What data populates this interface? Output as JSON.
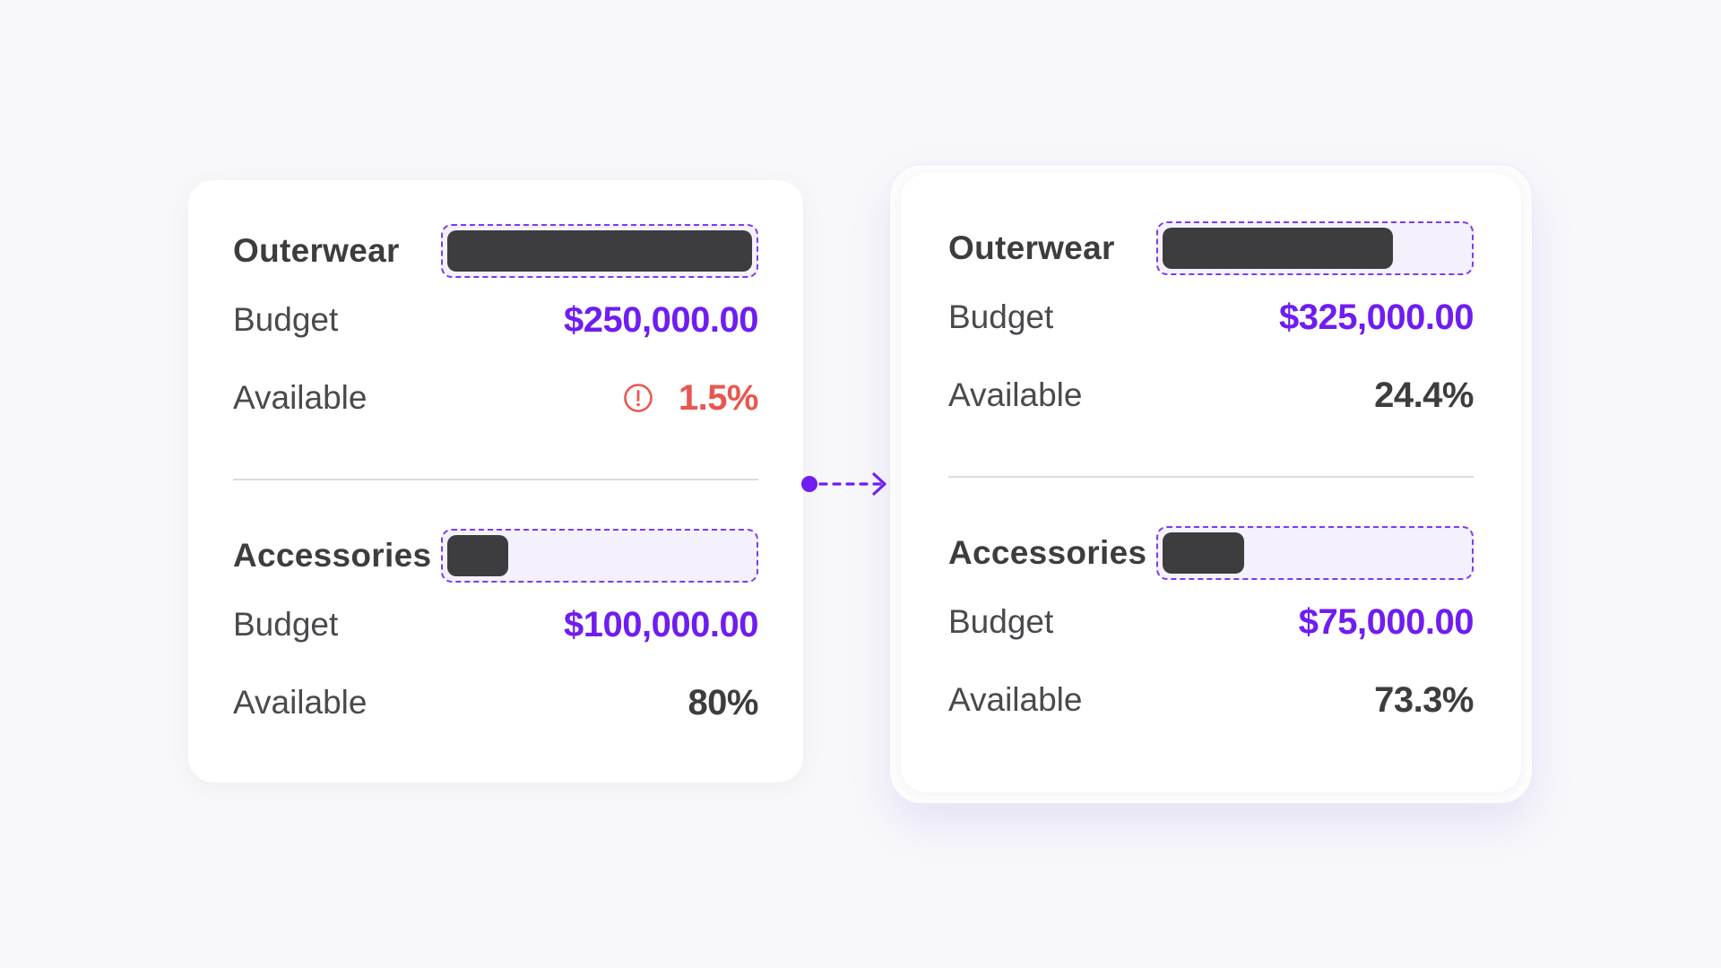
{
  "before": {
    "outerwear": {
      "name": "Outerwear",
      "bar_fill": 1.0,
      "budget_label": "Budget",
      "budget_value": "$250,000.00",
      "available_label": "Available",
      "available_value": "1.5%",
      "warning": true
    },
    "accessories": {
      "name": "Accessories",
      "bar_fill": 0.2,
      "budget_label": "Budget",
      "budget_value": "$100,000.00",
      "available_label": "Available",
      "available_value": "80%",
      "warning": false
    }
  },
  "after": {
    "outerwear": {
      "name": "Outerwear",
      "bar_fill": 0.756,
      "budget_label": "Budget",
      "budget_value": "$325,000.00",
      "available_label": "Available",
      "available_value": "24.4%",
      "warning": false
    },
    "accessories": {
      "name": "Accessories",
      "bar_fill": 0.267,
      "budget_label": "Budget",
      "budget_value": "$75,000.00",
      "available_label": "Available",
      "available_value": "73.3%",
      "warning": false
    }
  },
  "icons": {
    "warning": "alert-circle-icon",
    "transition": "dashed-arrow-right-icon"
  },
  "colors": {
    "accent": "#6f1df0",
    "warning": "#e8574f",
    "bar_fill": "#3d3d40",
    "bar_track": "#f4f1fd",
    "text": "#3d3d40"
  }
}
